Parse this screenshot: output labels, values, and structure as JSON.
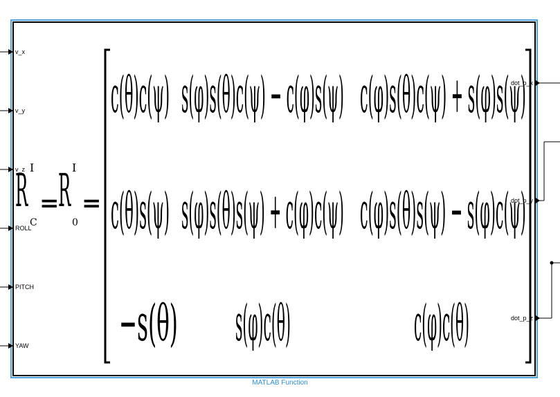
{
  "block": {
    "caption": "MATLAB Function",
    "colors": {
      "selection": "#4aa3df",
      "caption": "#2a8fd4",
      "border": "#000000"
    },
    "inputs": [
      "v_x",
      "v_y",
      "v_z",
      "ROLL",
      "PITCH",
      "YAW"
    ],
    "outputs": [
      "dot_p_x",
      "dot_p_y",
      "dot_p_z"
    ]
  },
  "equation": {
    "lhs_base": "R",
    "lhs_sup": "I",
    "lhs_sub": "C",
    "mid_base": "R",
    "mid_sup": "I",
    "mid_sub": "0",
    "equals": "=",
    "matrix": [
      [
        "c(θ)c(ψ)",
        "s(φ)s(θ)c(ψ) − c(φ)s(ψ)",
        "c(φ)s(θ)c(ψ) + s(φ)s(ψ)"
      ],
      [
        "c(θ)s(ψ)",
        "s(φ)s(θ)s(ψ) + c(φ)c(ψ)",
        "c(φ)s(θ)s(ψ) − s(φ)c(ψ)"
      ],
      [
        "−s(θ)",
        "s(φ)c(θ)",
        "c(φ)c(θ)"
      ]
    ]
  }
}
